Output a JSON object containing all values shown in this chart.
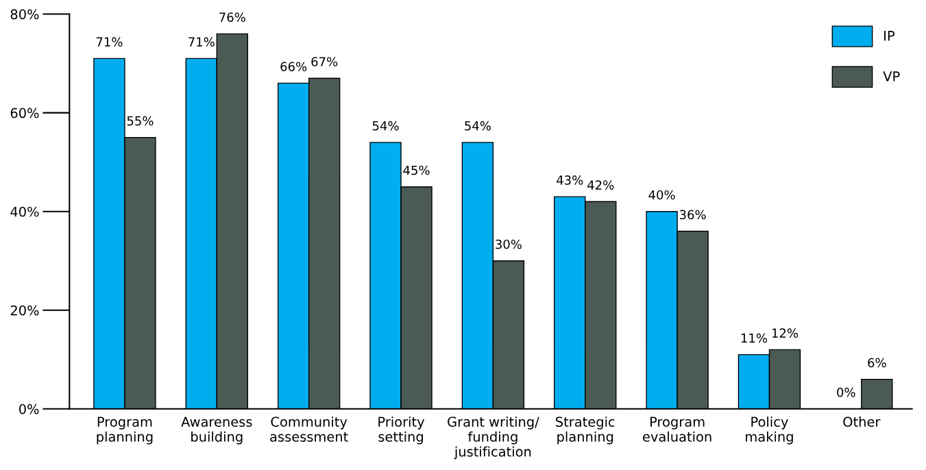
{
  "chart_data": {
    "type": "bar",
    "categories": [
      "Program\nplanning",
      "Awareness\nbuilding",
      "Community\nassessment",
      "Priority\nsetting",
      "Grant writing/\nfunding\njustification",
      "Strategic\nplanning",
      "Program\nevaluation",
      "Policy\nmaking",
      "Other"
    ],
    "series": [
      {
        "name": "IP",
        "color": "#00aeef",
        "values": [
          71,
          71,
          66,
          54,
          54,
          43,
          40,
          11,
          0
        ],
        "value_labels": [
          "71%",
          "71%",
          "66%",
          "54%",
          "54%",
          "43%",
          "40%",
          "11%",
          "0%"
        ]
      },
      {
        "name": "VP",
        "color": "#4b5a53",
        "values": [
          55,
          76,
          67,
          45,
          30,
          42,
          36,
          12,
          6
        ],
        "value_labels": [
          "55%",
          "76%",
          "67%",
          "45%",
          "30%",
          "42%",
          "36%",
          "12%",
          "6%"
        ]
      }
    ],
    "ylim": [
      0,
      80
    ],
    "yticks": [
      {
        "value": 0,
        "label": "0%"
      },
      {
        "value": 20,
        "label": "20%"
      },
      {
        "value": 40,
        "label": "40%"
      },
      {
        "value": 60,
        "label": "60%"
      },
      {
        "value": 80,
        "label": "80%"
      }
    ],
    "grid": false,
    "legend": "top right"
  }
}
